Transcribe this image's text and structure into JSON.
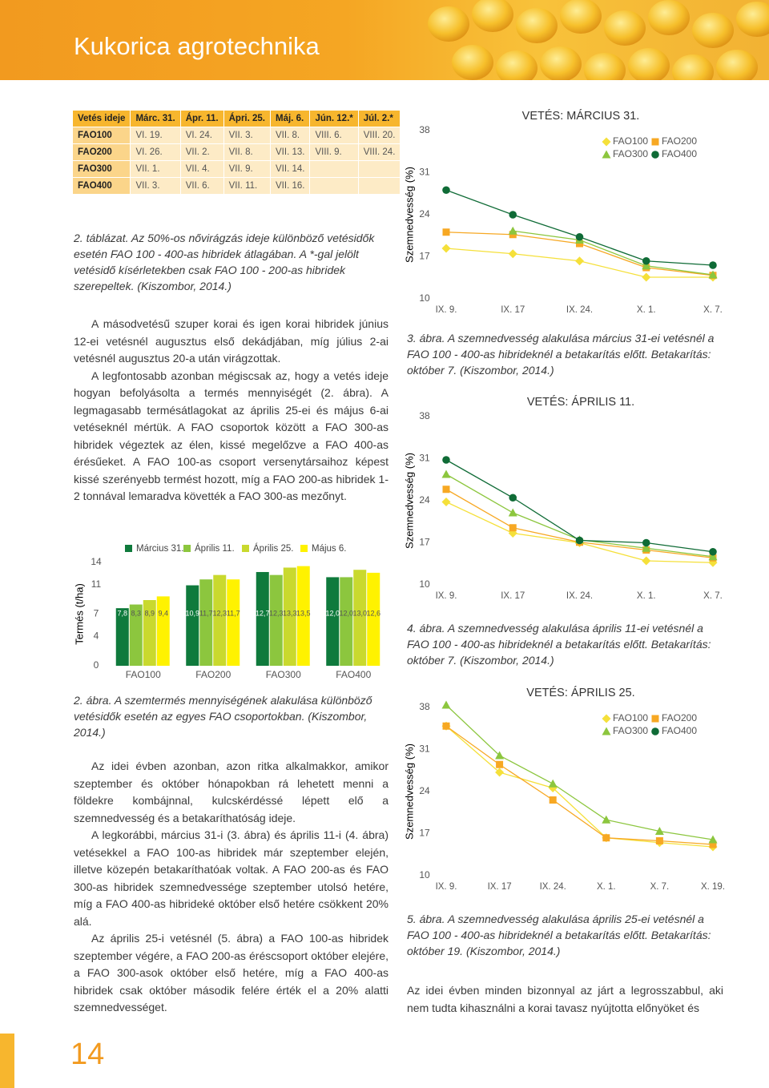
{
  "header": {
    "title": "Kukorica agrotechnika"
  },
  "table": {
    "header": [
      "Vetés ideje",
      "Márc. 31.",
      "Ápr. 11.",
      "Ápri. 25.",
      "Máj. 6.",
      "Jún. 12.*",
      "Júl. 2.*"
    ],
    "rows": [
      [
        "FAO100",
        "VI. 19.",
        "VI. 24.",
        "VII. 3.",
        "VII. 8.",
        "VIII. 6.",
        "VIII. 20."
      ],
      [
        "FAO200",
        "VI. 26.",
        "VII. 2.",
        "VII. 8.",
        "VII. 13.",
        "VIII. 9.",
        "VIII. 24."
      ],
      [
        "FAO300",
        "VII. 1.",
        "VII. 4.",
        "VII. 9.",
        "VII. 14."
      ],
      [
        "FAO400",
        "VII. 3.",
        "VII. 6.",
        "VII. 11.",
        "VII. 16."
      ]
    ]
  },
  "table_caption": "2. táblázat. Az 50%-os nővirágzás ideje különböző vetésidők esetén FAO 100 - 400-as hibridek átlagában. A *-gal jelölt vetésidő kísérletekben csak FAO 100 - 200-as hibridek szerepeltek. (Kiszombor, 2014.)",
  "paragraphs_1": [
    "A másodvetésű szuper korai és igen korai hibridek június 12-ei vetésnél augusztus első dekádjában, míg július 2-ai vetésnél augusztus 20-a után virágzottak.",
    "A legfontosabb azonban mégiscsak az, hogy a vetés ideje hogyan befolyásolta a termés mennyiségét (2. ábra). A legmagasabb termésátlagokat az április 25-ei és május 6-ai vetéseknél mértük. A FAO csoportok között a FAO 300-as hibridek végeztek az élen, kissé megelőzve a FAO 400-as érésűeket. A FAO 100-as csoport versenytársaihoz képest kissé szerényebb termést hozott, míg a FAO 200-as hibridek 1-2 tonnával lemaradva követték a FAO 300-as mezőnyt."
  ],
  "chart_data": [
    {
      "type": "bar",
      "ylabel": "Termés (t/ha)",
      "categories": [
        "FAO100",
        "FAO200",
        "FAO300",
        "FAO400"
      ],
      "ylim": [
        0,
        14
      ],
      "yticks": [
        0,
        4,
        7,
        11,
        14
      ],
      "grid": false,
      "series": [
        {
          "name": "Március 31.",
          "color": "#0f7a3c",
          "values": [
            7.8,
            10.9,
            12.7,
            12.0
          ],
          "value_labels": [
            "7,8",
            "10,9",
            "12,7",
            "12,0"
          ]
        },
        {
          "name": "Április 11.",
          "color": "#8cc63e",
          "values": [
            8.3,
            11.7,
            12.3,
            12.0
          ],
          "value_labels": [
            "8,3",
            "11,7",
            "12,3",
            "12,0"
          ]
        },
        {
          "name": "Április 25.",
          "color": "#c9d92e",
          "values": [
            8.9,
            12.3,
            13.3,
            13.0
          ],
          "value_labels": [
            "8,9",
            "12,3",
            "13,3",
            "13,0"
          ]
        },
        {
          "name": "Május 6.",
          "color": "#fff200",
          "values": [
            9.4,
            11.7,
            13.5,
            12.6
          ],
          "value_labels": [
            "9,4",
            "11,7",
            "13,5",
            "12,6"
          ]
        }
      ]
    },
    {
      "type": "line",
      "title": "VETÉS: MÁRCIUS 31.",
      "ylabel": "Szemnedvesség (%)",
      "categories": [
        "IX. 9.",
        "IX. 17",
        "IX. 24.",
        "X. 1.",
        "X. 7."
      ],
      "ylim": [
        10,
        38
      ],
      "yticks": [
        10,
        17,
        24,
        31,
        38
      ],
      "grid": false,
      "legend": "top-right",
      "series": [
        {
          "name": "FAO100",
          "color": "#f5e03a",
          "marker": "diamond",
          "values": [
            18.4,
            17.5,
            16.3,
            13.6,
            13.6
          ]
        },
        {
          "name": "FAO200",
          "color": "#f7a823",
          "marker": "square",
          "values": [
            21.1,
            20.7,
            19.2,
            15.2,
            13.9
          ]
        },
        {
          "name": "FAO300",
          "color": "#8cc63e",
          "marker": "triangle",
          "values": [
            null,
            21.3,
            19.8,
            15.5,
            14.0
          ]
        },
        {
          "name": "FAO400",
          "color": "#0f6b36",
          "marker": "circle",
          "values": [
            28.1,
            24.0,
            20.3,
            16.3,
            15.6
          ]
        }
      ]
    },
    {
      "type": "line",
      "title": "VETÉS: ÁPRILIS 11.",
      "ylabel": "Szemnedvesség (%)",
      "categories": [
        "IX. 9.",
        "IX. 17",
        "IX. 24.",
        "X. 1.",
        "X. 7."
      ],
      "ylim": [
        10,
        38
      ],
      "yticks": [
        10,
        17,
        24,
        31,
        38
      ],
      "grid": false,
      "series": [
        {
          "name": "FAO100",
          "color": "#f5e03a",
          "marker": "diamond",
          "values": [
            23.8,
            18.6,
            17.0,
            14.0,
            13.7
          ]
        },
        {
          "name": "FAO200",
          "color": "#f7a823",
          "marker": "square",
          "values": [
            25.9,
            19.5,
            17.1,
            15.8,
            14.5
          ]
        },
        {
          "name": "FAO300",
          "color": "#8cc63e",
          "marker": "triangle",
          "values": [
            28.4,
            22.0,
            17.5,
            16.1,
            14.7
          ]
        },
        {
          "name": "FAO400",
          "color": "#0f6b36",
          "marker": "circle",
          "values": [
            30.8,
            24.5,
            17.4,
            17.0,
            15.5
          ]
        }
      ]
    },
    {
      "type": "line",
      "title": "VETÉS: ÁPRILIS 25.",
      "ylabel": "Szemnedvesség (%)",
      "categories": [
        "IX. 9.",
        "IX. 17",
        "IX. 24.",
        "X. 1.",
        "X. 7.",
        "X. 19."
      ],
      "ylim": [
        10,
        38
      ],
      "yticks": [
        10,
        17,
        24,
        31,
        38
      ],
      "grid": false,
      "legend": "top-right",
      "series": [
        {
          "name": "FAO100",
          "color": "#f5e03a",
          "marker": "diamond",
          "values": [
            34.9,
            27.2,
            24.6,
            16.3,
            15.5,
            14.8
          ]
        },
        {
          "name": "FAO200",
          "color": "#f7a823",
          "marker": "square",
          "values": [
            34.9,
            28.5,
            22.6,
            16.3,
            15.8,
            15.2
          ]
        },
        {
          "name": "FAO300",
          "color": "#8cc63e",
          "marker": "triangle",
          "values": [
            38.4,
            30.0,
            25.3,
            19.3,
            17.4,
            16.0
          ]
        },
        {
          "name": "FAO400",
          "color": "#0f6b36",
          "marker": "circle",
          "values": [
            null,
            null,
            null,
            null,
            null,
            null
          ]
        }
      ]
    }
  ],
  "figure_captions": [
    "2. ábra. A szemtermés mennyiségének alakulása különböző vetésidők esetén az egyes FAO csoportokban. (Kiszombor, 2014.)",
    "3. ábra. A szemnedvesség alakulása március 31-ei vetésnél a FAO 100 - 400-as hibrideknél a betakarítás előtt. Betakarítás: október 7. (Kiszombor, 2014.)",
    "4. ábra. A szemnedvesség alakulása április 11-ei vetésnél a FAO 100 - 400-as hibrideknél a betakarítás előtt. Betakarítás: október 7. (Kiszombor, 2014.)",
    "5. ábra. A szemnedvesség alakulása április 25-ei vetésnél a FAO 100 - 400-as hibrideknél a betakarítás előtt. Betakarítás: október 19. (Kiszombor, 2014.)"
  ],
  "paragraphs_2": [
    "Az idei évben azonban, azon ritka alkalmakkor, amikor szeptember és október hónapokban rá lehetett menni a földekre kombájnnal, kulcskérdéssé lépett elő a szemnedvesség és a betakaríthatóság ideje.",
    "A legkorábbi, március 31-i (3. ábra) és április 11-i (4. ábra) vetésekkel a FAO 100-as hibridek már szeptember elején, illetve közepén betakaríthatóak voltak. A FAO 200-as és FAO 300-as hibridek szemnedvessége szeptember utolsó hetére, míg a FAO 400-as hibrideké október első hetére csökkent 20% alá.",
    "Az április 25-i vetésnél (5. ábra) a FAO 100-as hibridek szeptember végére, a FAO 200-as éréscsoport október elejére, a FAO 300-asok október első hetére, míg a FAO 400-as hibridek csak október második felére érték el a 20% alatti szemnedvességet."
  ],
  "right_paragraph": "Az idei évben minden bizonnyal az járt a legrosszabbul, aki nem tudta kihasználni a korai tavasz nyújtotta előnyöket és",
  "page_number": "14"
}
